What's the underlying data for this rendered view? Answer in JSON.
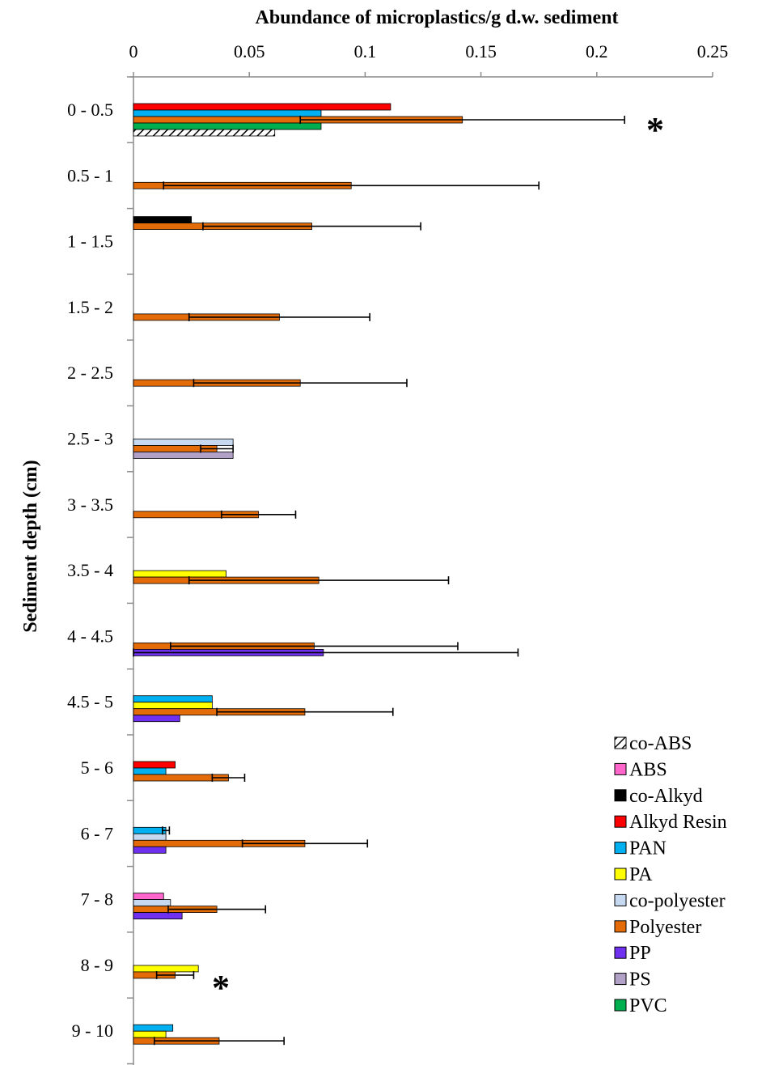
{
  "chart_data": {
    "type": "bar",
    "orientation": "horizontal",
    "title": "Abundance of microplastics/g d.w. sediment",
    "ylabel": "Sediment depth (cm)",
    "xlim": [
      0,
      0.25
    ],
    "xticks": [
      "0",
      "0.05",
      "0.1",
      "0.15",
      "0.2",
      "0.25"
    ],
    "categories": [
      "0 - 0.5",
      "0.5 - 1",
      "1 - 1.5",
      "1.5 - 2",
      "2 - 2.5",
      "2.5 - 3",
      "3 - 3.5",
      "3.5 - 4",
      "4 - 4.5",
      "4.5 - 5",
      "5 - 6",
      "6 - 7",
      "7 - 8",
      "8 - 9",
      "9 - 10"
    ],
    "legend_position": "bottom-right",
    "series": [
      {
        "name": "co-ABS",
        "color": "#ffffff",
        "pattern": "hatch",
        "values": [
          0.061,
          null,
          null,
          null,
          null,
          null,
          null,
          null,
          null,
          null,
          null,
          null,
          null,
          null,
          null
        ],
        "errors": [
          null,
          null,
          null,
          null,
          null,
          null,
          null,
          null,
          null,
          null,
          null,
          null,
          null,
          null,
          null
        ]
      },
      {
        "name": "ABS",
        "color": "#ff66cc",
        "values": [
          null,
          null,
          null,
          null,
          null,
          null,
          null,
          null,
          null,
          null,
          null,
          null,
          0.013,
          null,
          null
        ],
        "errors": [
          null,
          null,
          null,
          null,
          null,
          null,
          null,
          null,
          null,
          null,
          null,
          null,
          null,
          null,
          null
        ]
      },
      {
        "name": "co-Alkyd",
        "color": "#000000",
        "values": [
          null,
          null,
          0.025,
          null,
          null,
          null,
          null,
          null,
          null,
          null,
          null,
          null,
          null,
          null,
          null
        ],
        "errors": [
          null,
          null,
          null,
          null,
          null,
          null,
          null,
          null,
          null,
          null,
          null,
          null,
          null,
          null,
          null
        ]
      },
      {
        "name": "Alkyd Resin",
        "color": "#ff0000",
        "values": [
          0.111,
          null,
          null,
          null,
          null,
          null,
          null,
          null,
          null,
          null,
          0.018,
          null,
          null,
          null,
          null
        ],
        "errors": [
          null,
          null,
          null,
          null,
          null,
          null,
          null,
          null,
          null,
          null,
          null,
          null,
          null,
          null,
          null
        ]
      },
      {
        "name": "PAN",
        "color": "#00b0f0",
        "values": [
          0.081,
          null,
          null,
          null,
          null,
          null,
          null,
          null,
          null,
          0.034,
          0.014,
          0.014,
          null,
          null,
          0.017
        ],
        "errors": [
          null,
          null,
          null,
          null,
          null,
          null,
          null,
          null,
          null,
          null,
          null,
          0.0015,
          null,
          null,
          null
        ]
      },
      {
        "name": "PA",
        "color": "#ffff00",
        "values": [
          null,
          null,
          null,
          null,
          null,
          null,
          null,
          0.04,
          null,
          0.034,
          null,
          null,
          null,
          0.028,
          0.014
        ],
        "errors": [
          null,
          null,
          null,
          null,
          null,
          null,
          null,
          null,
          null,
          null,
          null,
          null,
          null,
          null,
          null
        ]
      },
      {
        "name": "co-polyester",
        "color": "#c6d9f1",
        "values": [
          null,
          null,
          null,
          null,
          null,
          0.043,
          null,
          null,
          null,
          null,
          null,
          0.014,
          0.016,
          null,
          null
        ],
        "errors": [
          null,
          null,
          null,
          null,
          null,
          null,
          null,
          null,
          null,
          null,
          null,
          null,
          null,
          null,
          null
        ]
      },
      {
        "name": "Polyester",
        "color": "#e36c09",
        "values": [
          0.142,
          0.094,
          0.077,
          0.063,
          0.072,
          0.036,
          0.054,
          0.08,
          0.078,
          0.074,
          0.041,
          0.074,
          0.036,
          0.018,
          0.037
        ],
        "errors": [
          0.07,
          0.081,
          0.047,
          0.039,
          0.046,
          0.007,
          0.016,
          0.056,
          0.062,
          0.038,
          0.007,
          0.027,
          0.021,
          0.008,
          0.028
        ]
      },
      {
        "name": "PP",
        "color": "#7030f0",
        "values": [
          null,
          null,
          null,
          null,
          null,
          null,
          null,
          null,
          0.082,
          0.02,
          null,
          0.014,
          0.021,
          null,
          null
        ],
        "errors": [
          null,
          null,
          null,
          null,
          null,
          null,
          null,
          null,
          0.084,
          null,
          null,
          null,
          null,
          null,
          null
        ]
      },
      {
        "name": "PS",
        "color": "#b2a1c7",
        "values": [
          null,
          null,
          null,
          null,
          null,
          0.043,
          null,
          null,
          null,
          null,
          null,
          null,
          null,
          null,
          null
        ],
        "errors": [
          null,
          null,
          null,
          null,
          null,
          null,
          null,
          null,
          null,
          null,
          null,
          null,
          null,
          null,
          null
        ]
      },
      {
        "name": "PVC",
        "color": "#00b050",
        "values": [
          0.081,
          null,
          null,
          null,
          null,
          null,
          null,
          null,
          null,
          null,
          null,
          null,
          null,
          null,
          null
        ],
        "errors": [
          null,
          null,
          null,
          null,
          null,
          null,
          null,
          null,
          null,
          null,
          null,
          null,
          null,
          null,
          null
        ]
      }
    ],
    "annotations": [
      {
        "text": "*",
        "category": "0 - 0.5"
      },
      {
        "text": "*",
        "category": "8 - 9"
      }
    ]
  }
}
